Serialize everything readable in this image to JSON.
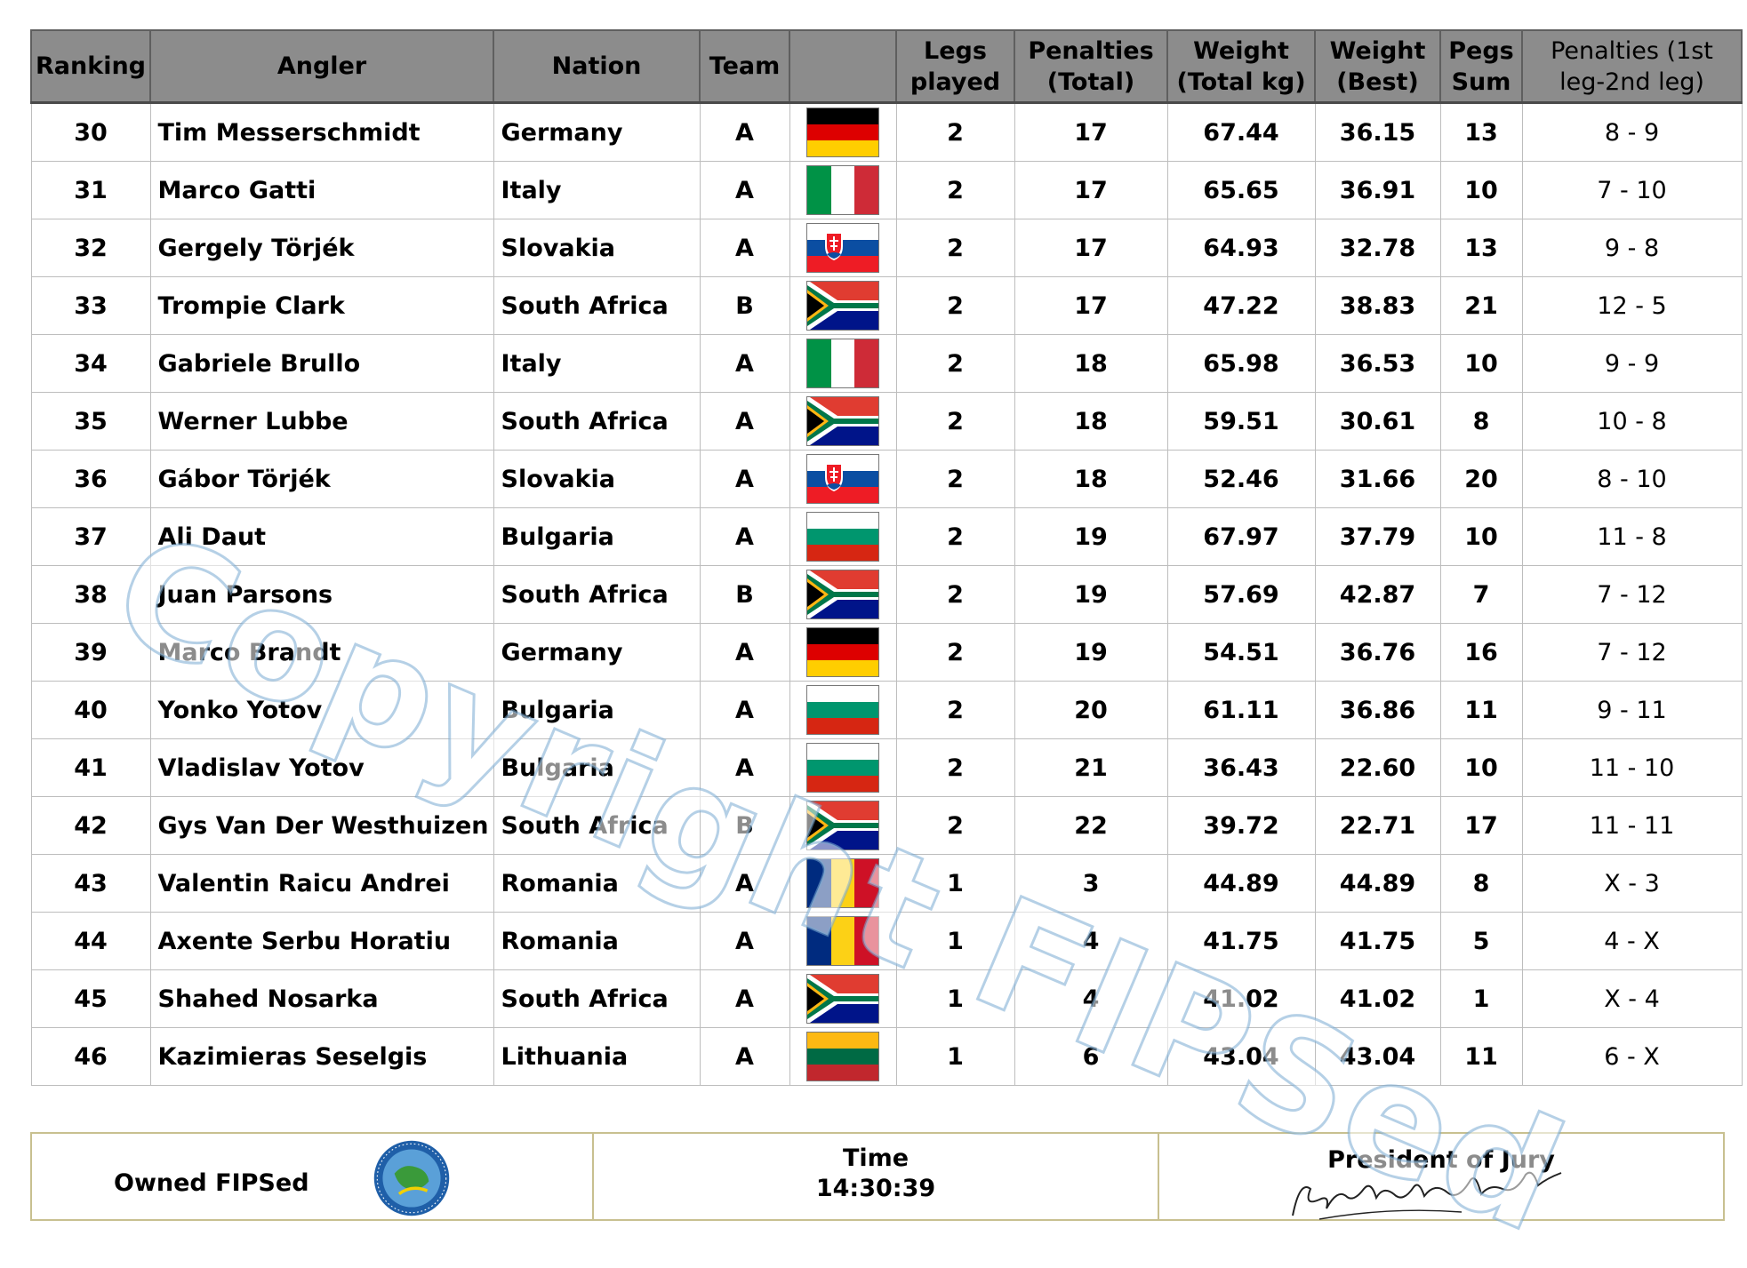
{
  "headers": {
    "ranking": "Ranking",
    "angler": "Angler",
    "nation": "Nation",
    "team": "Team",
    "flag": "",
    "legs_played": "Legs played",
    "penalties_total": "Penalties (Total)",
    "weight_total": "Weight (Total kg)",
    "weight_best": "Weight (Best)",
    "pegs_sum": "Pegs Sum",
    "penalties_split": "Penalties (1st leg-2nd leg)"
  },
  "rows": [
    {
      "ranking": "30",
      "angler": "Tim Messerschmidt",
      "nation": "Germany",
      "team": "A",
      "flag": "germany",
      "legs": "2",
      "penalties": "17",
      "weight_total": "67.44",
      "weight_best": "36.15",
      "pegs": "13",
      "split": "8 - 9"
    },
    {
      "ranking": "31",
      "angler": "Marco Gatti",
      "nation": "Italy",
      "team": "A",
      "flag": "italy",
      "legs": "2",
      "penalties": "17",
      "weight_total": "65.65",
      "weight_best": "36.91",
      "pegs": "10",
      "split": "7 - 10"
    },
    {
      "ranking": "32",
      "angler": "Gergely Törjék",
      "nation": "Slovakia",
      "team": "A",
      "flag": "slovakia",
      "legs": "2",
      "penalties": "17",
      "weight_total": "64.93",
      "weight_best": "32.78",
      "pegs": "13",
      "split": "9 - 8"
    },
    {
      "ranking": "33",
      "angler": "Trompie Clark",
      "nation": "South Africa",
      "team": "B",
      "flag": "south-africa",
      "legs": "2",
      "penalties": "17",
      "weight_total": "47.22",
      "weight_best": "38.83",
      "pegs": "21",
      "split": "12 - 5"
    },
    {
      "ranking": "34",
      "angler": "Gabriele Brullo",
      "nation": "Italy",
      "team": "A",
      "flag": "italy",
      "legs": "2",
      "penalties": "18",
      "weight_total": "65.98",
      "weight_best": "36.53",
      "pegs": "10",
      "split": "9 - 9"
    },
    {
      "ranking": "35",
      "angler": "Werner Lubbe",
      "nation": "South Africa",
      "team": "A",
      "flag": "south-africa",
      "legs": "2",
      "penalties": "18",
      "weight_total": "59.51",
      "weight_best": "30.61",
      "pegs": "8",
      "split": "10 - 8"
    },
    {
      "ranking": "36",
      "angler": "Gábor Törjék",
      "nation": "Slovakia",
      "team": "A",
      "flag": "slovakia",
      "legs": "2",
      "penalties": "18",
      "weight_total": "52.46",
      "weight_best": "31.66",
      "pegs": "20",
      "split": "8 - 10"
    },
    {
      "ranking": "37",
      "angler": "Ali Daut",
      "nation": "Bulgaria",
      "team": "A",
      "flag": "bulgaria",
      "legs": "2",
      "penalties": "19",
      "weight_total": "67.97",
      "weight_best": "37.79",
      "pegs": "10",
      "split": "11 - 8"
    },
    {
      "ranking": "38",
      "angler": "Juan  Parsons",
      "nation": "South Africa",
      "team": "B",
      "flag": "south-africa",
      "legs": "2",
      "penalties": "19",
      "weight_total": "57.69",
      "weight_best": "42.87",
      "pegs": "7",
      "split": "7 - 12"
    },
    {
      "ranking": "39",
      "angler": "Marco  Brandt",
      "nation": "Germany",
      "team": "A",
      "flag": "germany",
      "legs": "2",
      "penalties": "19",
      "weight_total": "54.51",
      "weight_best": "36.76",
      "pegs": "16",
      "split": "7 - 12"
    },
    {
      "ranking": "40",
      "angler": "Yonko Yotov",
      "nation": "Bulgaria",
      "team": "A",
      "flag": "bulgaria",
      "legs": "2",
      "penalties": "20",
      "weight_total": "61.11",
      "weight_best": "36.86",
      "pegs": "11",
      "split": "9 - 11"
    },
    {
      "ranking": "41",
      "angler": "Vladislav  Yotov",
      "nation": "Bulgaria",
      "team": "A",
      "flag": "bulgaria",
      "legs": "2",
      "penalties": "21",
      "weight_total": "36.43",
      "weight_best": "22.60",
      "pegs": "10",
      "split": "11 - 10"
    },
    {
      "ranking": "42",
      "angler": "Gys Van Der Westhuizen",
      "nation": "South Africa",
      "team": "B",
      "flag": "south-africa",
      "legs": "2",
      "penalties": "22",
      "weight_total": "39.72",
      "weight_best": "22.71",
      "pegs": "17",
      "split": "11 - 11"
    },
    {
      "ranking": "43",
      "angler": "Valentin Raicu Andrei",
      "nation": "Romania",
      "team": "A",
      "flag": "romania",
      "legs": "1",
      "penalties": "3",
      "weight_total": "44.89",
      "weight_best": "44.89",
      "pegs": "8",
      "split": "X - 3"
    },
    {
      "ranking": "44",
      "angler": "Axente Serbu Horatiu",
      "nation": "Romania",
      "team": "A",
      "flag": "romania",
      "legs": "1",
      "penalties": "4",
      "weight_total": "41.75",
      "weight_best": "41.75",
      "pegs": "5",
      "split": "4 - X"
    },
    {
      "ranking": "45",
      "angler": "Shahed Nosarka",
      "nation": "South Africa",
      "team": "A",
      "flag": "south-africa",
      "legs": "1",
      "penalties": "4",
      "weight_total": "41.02",
      "weight_best": "41.02",
      "pegs": "1",
      "split": "X - 4"
    },
    {
      "ranking": "46",
      "angler": "Kazimieras Seselgis",
      "nation": "Lithuania",
      "team": "A",
      "flag": "lithuania",
      "legs": "1",
      "penalties": "6",
      "weight_total": "43.04",
      "weight_best": "43.04",
      "pegs": "11",
      "split": "6 - X"
    }
  ],
  "footer": {
    "owned": "Owned FIPSed",
    "logo_icon": "fipsed-logo",
    "time_label": "Time",
    "time_value": "14:30:39",
    "jury_label": "President of Jury",
    "signature_icon": "handwritten-signature"
  },
  "watermark": "Copyright FIPSed",
  "colors": {
    "header_bg": "#8c8c8c",
    "grid_line": "#bdbdbd",
    "footer_border": "#c8c090",
    "watermark_outline": "#78aad2"
  }
}
